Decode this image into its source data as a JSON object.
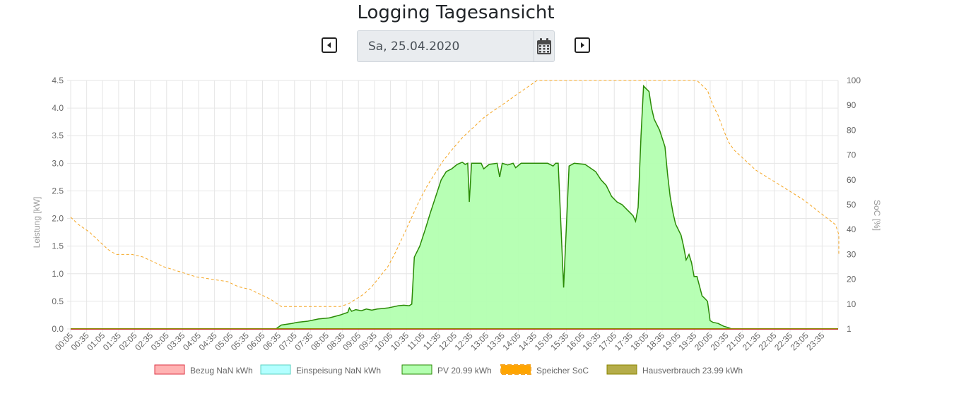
{
  "header": {
    "title": "Logging Tagesansicht",
    "date_value": "Sa, 25.04.2020"
  },
  "icons": {
    "prev": "caret-left-square-icon",
    "next": "caret-right-square-icon",
    "calendar": "calendar-icon"
  },
  "chart_data": {
    "type": "area",
    "ylabel": "Leistung [kW]",
    "y2label": "SoC [%]",
    "ylim": [
      0,
      4.5
    ],
    "y_ticks": [
      "0.0",
      "0.5",
      "1.0",
      "1.5",
      "2.0",
      "2.5",
      "3.0",
      "3.5",
      "4.0",
      "4.5"
    ],
    "y2lim": [
      0,
      100
    ],
    "y2_ticks": [
      "1",
      "10",
      "20",
      "30",
      "40",
      "50",
      "60",
      "70",
      "80",
      "90",
      "100"
    ],
    "x_ticks": [
      "00:05",
      "00:35",
      "01:05",
      "01:35",
      "02:05",
      "02:35",
      "03:05",
      "03:35",
      "04:05",
      "04:35",
      "05:05",
      "05:35",
      "06:05",
      "06:35",
      "07:05",
      "07:35",
      "08:05",
      "08:35",
      "09:05",
      "09:35",
      "10:05",
      "10:35",
      "11:05",
      "11:35",
      "12:05",
      "12:35",
      "13:05",
      "13:35",
      "14:05",
      "14:35",
      "15:05",
      "15:35",
      "16:05",
      "16:35",
      "17:05",
      "17:35",
      "18:05",
      "18:35",
      "19:05",
      "19:35",
      "20:05",
      "20:35",
      "21:05",
      "21:35",
      "22:05",
      "22:35",
      "23:05",
      "23:35"
    ],
    "grid": true,
    "legend_position": "bottom",
    "series": [
      {
        "name": "Bezug NaN kWh",
        "color": "#dc3545",
        "fill": "#ffb3b3",
        "kind": "area",
        "values": [
          [
            0.08,
            0
          ],
          [
            24.0,
            0
          ]
        ]
      },
      {
        "name": "Einspeisung NaN kWh",
        "color": "#5bd0c0",
        "fill": "#b3ffff",
        "kind": "area",
        "values": [
          [
            0.08,
            0
          ],
          [
            24.0,
            0
          ]
        ]
      },
      {
        "name": "PV 20.99 kWh",
        "color": "#2a8a05",
        "fill": "#b3ffb0",
        "kind": "area",
        "values": [
          [
            0.08,
            0
          ],
          [
            6.5,
            0
          ],
          [
            6.67,
            0.07
          ],
          [
            7.0,
            0.1
          ],
          [
            7.17,
            0.12
          ],
          [
            7.5,
            0.14
          ],
          [
            7.83,
            0.18
          ],
          [
            8.17,
            0.2
          ],
          [
            8.5,
            0.25
          ],
          [
            8.75,
            0.3
          ],
          [
            8.8,
            0.38
          ],
          [
            8.87,
            0.32
          ],
          [
            9.0,
            0.35
          ],
          [
            9.17,
            0.33
          ],
          [
            9.33,
            0.36
          ],
          [
            9.5,
            0.34
          ],
          [
            9.67,
            0.36
          ],
          [
            9.83,
            0.37
          ],
          [
            10.0,
            0.38
          ],
          [
            10.17,
            0.4
          ],
          [
            10.33,
            0.42
          ],
          [
            10.5,
            0.43
          ],
          [
            10.67,
            0.42
          ],
          [
            10.75,
            0.45
          ],
          [
            10.83,
            1.3
          ],
          [
            11.0,
            1.5
          ],
          [
            11.17,
            1.8
          ],
          [
            11.33,
            2.1
          ],
          [
            11.5,
            2.4
          ],
          [
            11.67,
            2.7
          ],
          [
            11.83,
            2.85
          ],
          [
            12.0,
            2.9
          ],
          [
            12.17,
            2.98
          ],
          [
            12.33,
            3.02
          ],
          [
            12.42,
            2.98
          ],
          [
            12.5,
            3.0
          ],
          [
            12.55,
            2.3
          ],
          [
            12.62,
            3.0
          ],
          [
            12.75,
            3.0
          ],
          [
            12.92,
            3.0
          ],
          [
            13.0,
            2.9
          ],
          [
            13.17,
            2.98
          ],
          [
            13.42,
            3.0
          ],
          [
            13.5,
            2.75
          ],
          [
            13.58,
            3.0
          ],
          [
            13.75,
            2.97
          ],
          [
            13.92,
            3.0
          ],
          [
            14.0,
            2.92
          ],
          [
            14.17,
            3.0
          ],
          [
            14.5,
            3.0
          ],
          [
            15.0,
            3.0
          ],
          [
            15.17,
            2.95
          ],
          [
            15.25,
            3.0
          ],
          [
            15.33,
            3.0
          ],
          [
            15.5,
            0.75
          ],
          [
            15.67,
            2.95
          ],
          [
            15.83,
            3.0
          ],
          [
            16.17,
            2.98
          ],
          [
            16.5,
            2.85
          ],
          [
            16.67,
            2.7
          ],
          [
            16.83,
            2.6
          ],
          [
            17.0,
            2.4
          ],
          [
            17.17,
            2.3
          ],
          [
            17.33,
            2.25
          ],
          [
            17.5,
            2.15
          ],
          [
            17.67,
            2.05
          ],
          [
            17.75,
            1.95
          ],
          [
            17.83,
            2.2
          ],
          [
            17.92,
            3.5
          ],
          [
            18.0,
            4.4
          ],
          [
            18.08,
            4.35
          ],
          [
            18.17,
            4.3
          ],
          [
            18.25,
            4.0
          ],
          [
            18.33,
            3.8
          ],
          [
            18.5,
            3.6
          ],
          [
            18.67,
            3.3
          ],
          [
            18.75,
            2.8
          ],
          [
            18.83,
            2.4
          ],
          [
            18.92,
            2.1
          ],
          [
            19.0,
            1.9
          ],
          [
            19.17,
            1.7
          ],
          [
            19.25,
            1.5
          ],
          [
            19.33,
            1.25
          ],
          [
            19.42,
            1.35
          ],
          [
            19.5,
            1.2
          ],
          [
            19.58,
            0.95
          ],
          [
            19.67,
            0.95
          ],
          [
            19.83,
            0.6
          ],
          [
            19.92,
            0.55
          ],
          [
            20.0,
            0.5
          ],
          [
            20.08,
            0.15
          ],
          [
            20.17,
            0.12
          ],
          [
            20.33,
            0.1
          ],
          [
            20.5,
            0.05
          ],
          [
            20.67,
            0.02
          ],
          [
            20.75,
            0
          ],
          [
            24.0,
            0
          ]
        ]
      },
      {
        "name": "Speicher SoC",
        "color": "#f5a623",
        "fill": "#ffa500",
        "kind": "soc-dashed",
        "values": [
          [
            0.08,
            45
          ],
          [
            0.33,
            42
          ],
          [
            0.67,
            39
          ],
          [
            1.0,
            35
          ],
          [
            1.25,
            32
          ],
          [
            1.5,
            30
          ],
          [
            2.0,
            30
          ],
          [
            2.33,
            29
          ],
          [
            2.67,
            27
          ],
          [
            3.0,
            25
          ],
          [
            3.5,
            23
          ],
          [
            4.0,
            21
          ],
          [
            4.5,
            20
          ],
          [
            5.0,
            19
          ],
          [
            5.33,
            17
          ],
          [
            5.67,
            16
          ],
          [
            6.0,
            14
          ],
          [
            6.33,
            12
          ],
          [
            6.67,
            9
          ],
          [
            7.0,
            9
          ],
          [
            7.5,
            9
          ],
          [
            8.0,
            9
          ],
          [
            8.5,
            9
          ],
          [
            8.75,
            10
          ],
          [
            9.0,
            12
          ],
          [
            9.25,
            14
          ],
          [
            9.5,
            17
          ],
          [
            9.75,
            21
          ],
          [
            10.0,
            25
          ],
          [
            10.25,
            31
          ],
          [
            10.5,
            38
          ],
          [
            10.75,
            45
          ],
          [
            11.0,
            52
          ],
          [
            11.25,
            58
          ],
          [
            11.5,
            63
          ],
          [
            11.75,
            68
          ],
          [
            12.0,
            72
          ],
          [
            12.33,
            77
          ],
          [
            12.67,
            81
          ],
          [
            13.0,
            85
          ],
          [
            13.33,
            88
          ],
          [
            13.67,
            91
          ],
          [
            14.0,
            94
          ],
          [
            14.33,
            97
          ],
          [
            14.67,
            100
          ],
          [
            15.0,
            100
          ],
          [
            16.0,
            100
          ],
          [
            17.0,
            100
          ],
          [
            18.0,
            100
          ],
          [
            19.0,
            100
          ],
          [
            19.67,
            100
          ],
          [
            20.0,
            96
          ],
          [
            20.17,
            90
          ],
          [
            20.33,
            86
          ],
          [
            20.5,
            80
          ],
          [
            20.67,
            75
          ],
          [
            20.83,
            72
          ],
          [
            21.0,
            70
          ],
          [
            21.5,
            64
          ],
          [
            22.0,
            60
          ],
          [
            22.5,
            56
          ],
          [
            23.0,
            52
          ],
          [
            23.5,
            47
          ],
          [
            24.0,
            42
          ],
          [
            24.5,
            38
          ],
          [
            24.75,
            35
          ],
          [
            25.0,
            33
          ],
          [
            25.08,
            30
          ]
        ]
      },
      {
        "name": "Hausverbrauch 23.99 kWh",
        "color": "#8a8500",
        "fill": "#b5ad4a",
        "kind": "baseline",
        "values": [
          [
            0.08,
            0.01
          ],
          [
            24.0,
            0.01
          ]
        ]
      }
    ]
  }
}
